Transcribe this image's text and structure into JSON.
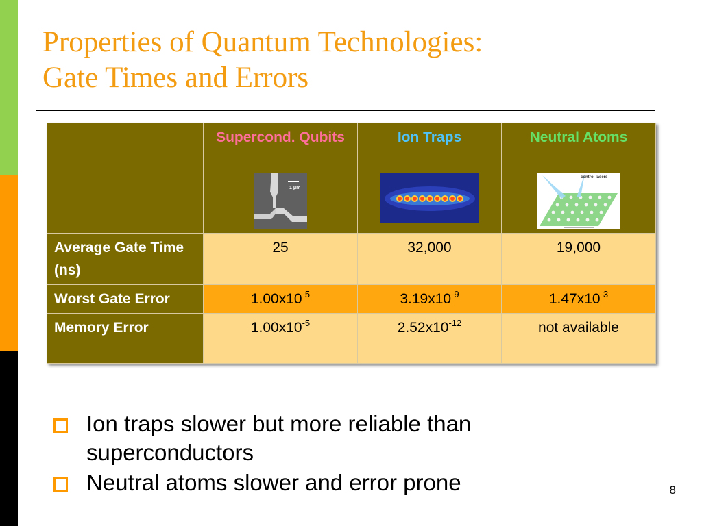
{
  "slide": {
    "title_line1": "Properties of Quantum Technologies:",
    "title_line2": "Gate Times and Errors",
    "page_number": "8"
  },
  "colors": {
    "strip_green": "#92d050",
    "strip_orange": "#ff9900",
    "strip_black": "#000000",
    "title": "#f39c12",
    "header_bg": "#7a6a00",
    "row_light": "#ffd98a",
    "row_orange": "#ffa70f",
    "supercond_label": "#ff6f9a",
    "iontrap_label": "#4fc3f7",
    "neutral_label": "#66e066"
  },
  "table": {
    "columns": [
      {
        "label": "Supercond. Qubits",
        "image": "superconducting-qubit-micrograph",
        "scale_label": "1 μm"
      },
      {
        "label": "Ion Traps",
        "image": "trapped-ion-chain-image"
      },
      {
        "label": "Neutral Atoms",
        "image": "neutral-atom-lattice-diagram",
        "annotation": "control lasers"
      }
    ],
    "rows": [
      {
        "label": "Average Gate Time (ns)",
        "cells": [
          {
            "mantissa": "25",
            "exp": ""
          },
          {
            "mantissa": "32,000",
            "exp": ""
          },
          {
            "mantissa": "19,000",
            "exp": ""
          }
        ]
      },
      {
        "label": "Worst Gate Error",
        "cells": [
          {
            "mantissa": "1.00x10",
            "exp": "-5"
          },
          {
            "mantissa": "3.19x10",
            "exp": "-9"
          },
          {
            "mantissa": "1.47x10",
            "exp": "-3"
          }
        ]
      },
      {
        "label": "Memory Error",
        "cells": [
          {
            "mantissa": "1.00x10",
            "exp": "-5"
          },
          {
            "mantissa": "2.52x10",
            "exp": "-12"
          },
          {
            "mantissa": "not available",
            "exp": ""
          }
        ]
      }
    ]
  },
  "bullets": [
    "Ion traps slower but more reliable than superconductors",
    "Neutral atoms slower and error prone"
  ]
}
